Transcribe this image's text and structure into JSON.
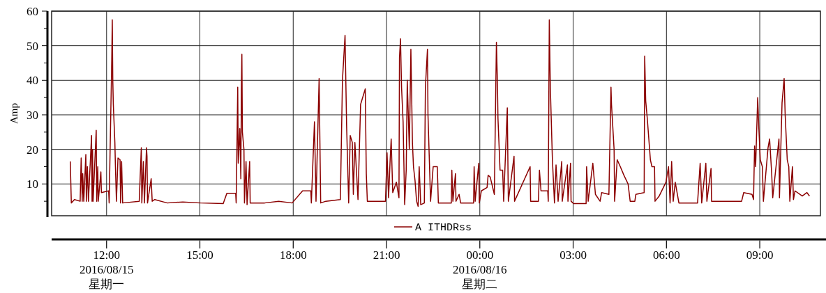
{
  "chart_data": {
    "type": "line",
    "ylabel": "Amp",
    "xlim": [
      "2016-08-15T10:14",
      "2016-08-16T10:57"
    ],
    "ylim": [
      0.8,
      60
    ],
    "xticks": [
      {
        "value": "2016-08-15T12:00",
        "label": "12:00\n2016/08/15\n星期一"
      },
      {
        "value": "2016-08-15T15:00",
        "label": "15:00"
      },
      {
        "value": "2016-08-15T18:00",
        "label": "18:00"
      },
      {
        "value": "2016-08-15T21:00",
        "label": "21:00"
      },
      {
        "value": "2016-08-16T00:00",
        "label": "00:00\n2016/08/16\n星期二"
      },
      {
        "value": "2016-08-16T03:00",
        "label": "03:00"
      },
      {
        "value": "2016-08-16T06:00",
        "label": "06:00"
      },
      {
        "value": "2016-08-16T09:00",
        "label": "09:00"
      }
    ],
    "yticks": [
      {
        "value": 5,
        "label": null
      },
      10,
      {
        "value": 15,
        "label": null
      },
      20,
      {
        "value": 25,
        "label": null
      },
      30,
      {
        "value": 35,
        "label": null
      },
      40,
      {
        "value": 45,
        "label": null
      },
      50,
      {
        "value": 55,
        "label": null
      },
      60
    ],
    "grid": true,
    "legend": "bottom",
    "series": [
      {
        "name": "A ITHDRss",
        "color": "#8b0000",
        "x": [
          "2016-08-15T10:50",
          "2016-08-15T10:52",
          "2016-08-15T10:58",
          "2016-08-15T11:09",
          "2016-08-15T11:11",
          "2016-08-15T11:13",
          "2016-08-15T11:14",
          "2016-08-15T11:16",
          "2016-08-15T11:20",
          "2016-08-15T11:21",
          "2016-08-15T11:23",
          "2016-08-15T11:25",
          "2016-08-15T11:31",
          "2016-08-15T11:32",
          "2016-08-15T11:33",
          "2016-08-15T11:34",
          "2016-08-15T11:40",
          "2016-08-15T11:41",
          "2016-08-15T11:43",
          "2016-08-15T11:44",
          "2016-08-15T11:49",
          "2016-08-15T11:50",
          "2016-08-15T12:04",
          "2016-08-15T12:05",
          "2016-08-15T12:10",
          "2016-08-15T12:11",
          "2016-08-15T12:12",
          "2016-08-15T12:13",
          "2016-08-15T12:16",
          "2016-08-15T12:17",
          "2016-08-15T12:19",
          "2016-08-15T12:22",
          "2016-08-15T12:26",
          "2016-08-15T12:27",
          "2016-08-15T12:29",
          "2016-08-15T12:31",
          "2016-08-15T13:03",
          "2016-08-15T13:07",
          "2016-08-15T13:08",
          "2016-08-15T13:11",
          "2016-08-15T13:13",
          "2016-08-15T13:17",
          "2016-08-15T13:18",
          "2016-08-15T13:19",
          "2016-08-15T13:26",
          "2016-08-15T13:28",
          "2016-08-15T13:33",
          "2016-08-15T13:57",
          "2016-08-15T14:27",
          "2016-08-15T15:01",
          "2016-08-15T15:45",
          "2016-08-15T15:52",
          "2016-08-15T16:09",
          "2016-08-15T16:10",
          "2016-08-15T16:13",
          "2016-08-15T16:14",
          "2016-08-15T16:17",
          "2016-08-15T16:19",
          "2016-08-15T16:20",
          "2016-08-15T16:21",
          "2016-08-15T16:22",
          "2016-08-15T16:25",
          "2016-08-15T16:26",
          "2016-08-15T16:29",
          "2016-08-15T16:31",
          "2016-08-15T16:36",
          "2016-08-15T16:37",
          "2016-08-15T17:05",
          "2016-08-15T17:32",
          "2016-08-15T17:58",
          "2016-08-15T18:18",
          "2016-08-15T18:34",
          "2016-08-15T18:35",
          "2016-08-15T18:41",
          "2016-08-15T18:44",
          "2016-08-15T18:50",
          "2016-08-15T18:53",
          "2016-08-15T19:03",
          "2016-08-15T19:31",
          "2016-08-15T19:35",
          "2016-08-15T19:40",
          "2016-08-15T19:43",
          "2016-08-15T19:47",
          "2016-08-15T19:50",
          "2016-08-15T19:54",
          "2016-08-15T19:56",
          "2016-08-15T19:59",
          "2016-08-15T20:05",
          "2016-08-15T20:10",
          "2016-08-15T20:19",
          "2016-08-15T20:21",
          "2016-08-15T20:23",
          "2016-08-15T20:32",
          "2016-08-15T20:58",
          "2016-08-15T21:01",
          "2016-08-15T21:04",
          "2016-08-15T21:07",
          "2016-08-15T21:09",
          "2016-08-15T21:12",
          "2016-08-15T21:19",
          "2016-08-15T21:24",
          "2016-08-15T21:25",
          "2016-08-15T21:27",
          "2016-08-15T21:29",
          "2016-08-15T21:32",
          "2016-08-15T21:35",
          "2016-08-15T21:38",
          "2016-08-15T21:40",
          "2016-08-15T21:44",
          "2016-08-15T21:47",
          "2016-08-15T21:50",
          "2016-08-15T21:52",
          "2016-08-15T21:55",
          "2016-08-15T21:58",
          "2016-08-15T22:01",
          "2016-08-15T22:03",
          "2016-08-15T22:06",
          "2016-08-15T22:13",
          "2016-08-15T22:15",
          "2016-08-15T22:19",
          "2016-08-15T22:20",
          "2016-08-15T22:25",
          "2016-08-15T22:30",
          "2016-08-15T22:38",
          "2016-08-15T22:40",
          "2016-08-15T23:05",
          "2016-08-15T23:06",
          "2016-08-15T23:08",
          "2016-08-15T23:13",
          "2016-08-15T23:14",
          "2016-08-15T23:20",
          "2016-08-15T23:23",
          "2016-08-15T23:48",
          "2016-08-15T23:49",
          "2016-08-15T23:51",
          "2016-08-15T23:58",
          "2016-08-15T23:59",
          "2016-08-16T00:03",
          "2016-08-16T00:14",
          "2016-08-16T00:16",
          "2016-08-16T00:20",
          "2016-08-16T00:28",
          "2016-08-16T00:32",
          "2016-08-16T00:34",
          "2016-08-16T00:35",
          "2016-08-16T00:39",
          "2016-08-16T00:44",
          "2016-08-16T00:46",
          "2016-08-16T00:53",
          "2016-08-16T00:55",
          "2016-08-16T01:06",
          "2016-08-16T01:07",
          "2016-08-16T01:37",
          "2016-08-16T01:38",
          "2016-08-16T01:53",
          "2016-08-16T01:55",
          "2016-08-16T01:58",
          "2016-08-16T02:11",
          "2016-08-16T02:12",
          "2016-08-16T02:14",
          "2016-08-16T02:16",
          "2016-08-16T02:20",
          "2016-08-16T02:24",
          "2016-08-16T02:27",
          "2016-08-16T02:31",
          "2016-08-16T02:38",
          "2016-08-16T02:39",
          "2016-08-16T02:49",
          "2016-08-16T02:50",
          "2016-08-16T02:55",
          "2016-08-16T02:56",
          "2016-08-16T03:01",
          "2016-08-16T03:25",
          "2016-08-16T03:26",
          "2016-08-16T03:29",
          "2016-08-16T03:38",
          "2016-08-16T03:43",
          "2016-08-16T03:52",
          "2016-08-16T03:55",
          "2016-08-16T04:09",
          "2016-08-16T04:13",
          "2016-08-16T04:14",
          "2016-08-16T04:19",
          "2016-08-16T04:20",
          "2016-08-16T04:25",
          "2016-08-16T04:31",
          "2016-08-16T04:38",
          "2016-08-16T04:46",
          "2016-08-16T04:50",
          "2016-08-16T04:59",
          "2016-08-16T05:01",
          "2016-08-16T05:17",
          "2016-08-16T05:18",
          "2016-08-16T05:20",
          "2016-08-16T05:23",
          "2016-08-16T05:29",
          "2016-08-16T05:32",
          "2016-08-16T05:37",
          "2016-08-16T05:38",
          "2016-08-16T05:46",
          "2016-08-16T05:59",
          "2016-08-16T06:04",
          "2016-08-16T06:07",
          "2016-08-16T06:10",
          "2016-08-16T06:13",
          "2016-08-16T06:17",
          "2016-08-16T06:24",
          "2016-08-16T07:00",
          "2016-08-16T07:05",
          "2016-08-16T07:08",
          "2016-08-16T07:16",
          "2016-08-16T07:18",
          "2016-08-16T07:26",
          "2016-08-16T07:27",
          "2016-08-16T07:37",
          "2016-08-16T08:25",
          "2016-08-16T08:29",
          "2016-08-16T08:45",
          "2016-08-16T08:48",
          "2016-08-16T08:50",
          "2016-08-16T08:52",
          "2016-08-16T08:56",
          "2016-08-16T08:58",
          "2016-08-16T09:01",
          "2016-08-16T09:05",
          "2016-08-16T09:07",
          "2016-08-16T09:16",
          "2016-08-16T09:19",
          "2016-08-16T09:23",
          "2016-08-16T09:25",
          "2016-08-16T09:37",
          "2016-08-16T09:38",
          "2016-08-16T09:43",
          "2016-08-16T09:47",
          "2016-08-16T09:49",
          "2016-08-16T09:53",
          "2016-08-16T09:56",
          "2016-08-16T09:58",
          "2016-08-16T10:03",
          "2016-08-16T10:05",
          "2016-08-16T10:08",
          "2016-08-16T10:22",
          "2016-08-16T10:31",
          "2016-08-16T10:36"
        ],
        "values": [
          16.5,
          4.5,
          5.5,
          5,
          17.5,
          5,
          13,
          5,
          18.5,
          5,
          15,
          5,
          24,
          5,
          20,
          5,
          25.5,
          5,
          15,
          5,
          13.5,
          7.5,
          8,
          4.5,
          46,
          57.5,
          40,
          33,
          22,
          15.5,
          5,
          17.5,
          17,
          4.5,
          16.5,
          4.5,
          5,
          20.5,
          4.5,
          16.5,
          4.5,
          20.5,
          18,
          4.5,
          11.5,
          5,
          5.5,
          4.5,
          4.8,
          4.5,
          4.3,
          7.3,
          7.3,
          4.5,
          38,
          16,
          26,
          11.5,
          37,
          47.5,
          25,
          20,
          4.5,
          16.5,
          4,
          16.5,
          4.5,
          4.5,
          5,
          4.5,
          8,
          8,
          4.5,
          28,
          5,
          40.5,
          4.5,
          5,
          5.5,
          40,
          53,
          27,
          4.5,
          24,
          22,
          7,
          22,
          5.5,
          33,
          37.5,
          13,
          5,
          5,
          5,
          19,
          6,
          17,
          23,
          7.5,
          10.5,
          6,
          46.5,
          52,
          38,
          28,
          4,
          14,
          40,
          20,
          49,
          22,
          15,
          11,
          5,
          3.5,
          15,
          4,
          4.5,
          38,
          49,
          30,
          5,
          15,
          15,
          4.5,
          4.5,
          14,
          5,
          13,
          5,
          7,
          4.5,
          4.5,
          15,
          5,
          16,
          4.5,
          8,
          9,
          12.5,
          12,
          7,
          51,
          39,
          29,
          14,
          14,
          5,
          32,
          5,
          18,
          5,
          15,
          5,
          5,
          14,
          8,
          8,
          5,
          57.5,
          38,
          17,
          4.5,
          15.5,
          5,
          16.5,
          5,
          15.5,
          5,
          16,
          5,
          4.3,
          4.3,
          15,
          5,
          16,
          7,
          5,
          7.5,
          7,
          38,
          33,
          20,
          5,
          17,
          15,
          12.5,
          10,
          5,
          5,
          7,
          7.5,
          47,
          34,
          29,
          17,
          15,
          15,
          5,
          6.5,
          10.5,
          15,
          4.5,
          16.5,
          5,
          10.5,
          4.5,
          4.5,
          16,
          4.5,
          16,
          5,
          14.5,
          5,
          5,
          5,
          7.5,
          7,
          5.5,
          21,
          15,
          35,
          27,
          17,
          15,
          5,
          20.5,
          23,
          13,
          6,
          23,
          6,
          33.5,
          40.5,
          30,
          17,
          15,
          5,
          15,
          5.5,
          8,
          6.5,
          7.5,
          6.5
        ]
      }
    ]
  }
}
